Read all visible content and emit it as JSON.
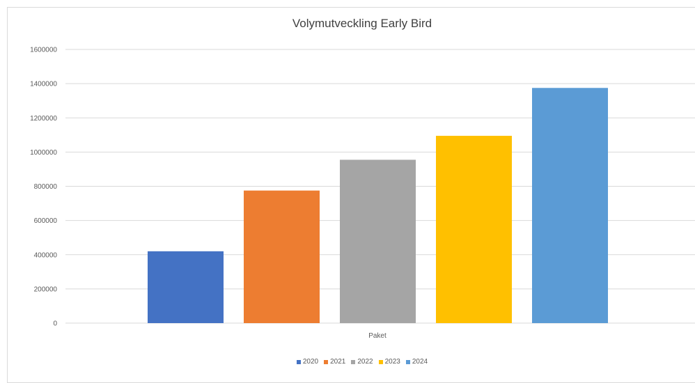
{
  "chart_data": {
    "type": "bar",
    "title": "Volymutveckling Early Bird",
    "categories": [
      "Paket"
    ],
    "xlabel": "Paket",
    "ylabel": "",
    "ylim": [
      0,
      1600000
    ],
    "yticks": [
      0,
      200000,
      400000,
      600000,
      800000,
      1000000,
      1200000,
      1400000,
      1600000
    ],
    "grid": true,
    "legend_position": "bottom",
    "series": [
      {
        "name": "2020",
        "values": [
          420000
        ],
        "color": "#4472C4"
      },
      {
        "name": "2021",
        "values": [
          775000
        ],
        "color": "#ED7D31"
      },
      {
        "name": "2022",
        "values": [
          955000
        ],
        "color": "#A5A5A5"
      },
      {
        "name": "2023",
        "values": [
          1095000
        ],
        "color": "#FFC000"
      },
      {
        "name": "2024",
        "values": [
          1375000
        ],
        "color": "#5B9BD5"
      }
    ]
  }
}
